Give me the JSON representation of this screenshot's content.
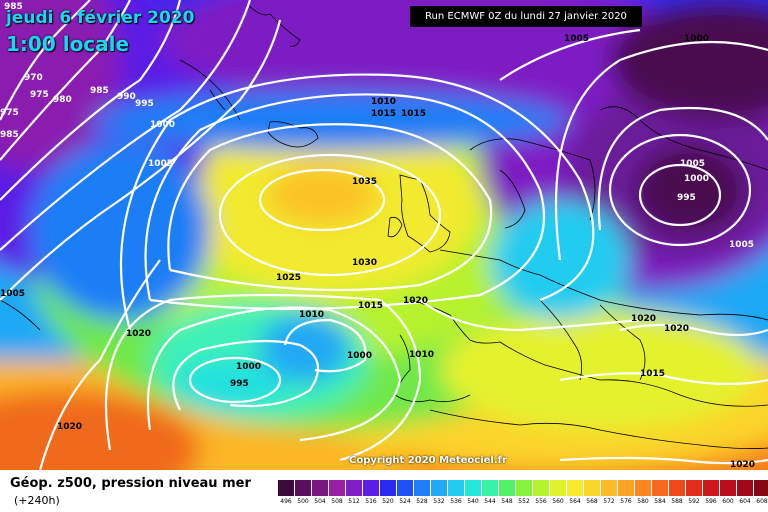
{
  "header": {
    "date": "jeudi 6 février 2020",
    "local_time": "1:00 locale",
    "run": "Run ECMWF 0Z du lundi 27 janvier 2020",
    "copyright": "Copyright 2020 Meteociel.fr"
  },
  "legend": {
    "field": "Géop. z500, pression niveau mer",
    "lead": "(+240h)",
    "scale": [
      {
        "value": "496",
        "color": "#3a0a3a"
      },
      {
        "value": "500",
        "color": "#5a0f5e"
      },
      {
        "value": "504",
        "color": "#7a1682"
      },
      {
        "value": "508",
        "color": "#9a1fa6"
      },
      {
        "value": "512",
        "color": "#7e1ec4"
      },
      {
        "value": "516",
        "color": "#5a1ee6"
      },
      {
        "value": "520",
        "color": "#2a2af0"
      },
      {
        "value": "524",
        "color": "#1f50f5"
      },
      {
        "value": "528",
        "color": "#1f7ef7"
      },
      {
        "value": "532",
        "color": "#22a8f5"
      },
      {
        "value": "536",
        "color": "#22ccf0"
      },
      {
        "value": "540",
        "color": "#24e6dc"
      },
      {
        "value": "544",
        "color": "#3af0a6"
      },
      {
        "value": "548",
        "color": "#52f266"
      },
      {
        "value": "552",
        "color": "#86f23c"
      },
      {
        "value": "556",
        "color": "#b6f22e"
      },
      {
        "value": "560",
        "color": "#def22e"
      },
      {
        "value": "564",
        "color": "#f7ea2e"
      },
      {
        "value": "568",
        "color": "#fbd42a"
      },
      {
        "value": "572",
        "color": "#fcbb26"
      },
      {
        "value": "576",
        "color": "#fca122"
      },
      {
        "value": "580",
        "color": "#fb8520"
      },
      {
        "value": "584",
        "color": "#f8681e"
      },
      {
        "value": "588",
        "color": "#f04a1c"
      },
      {
        "value": "592",
        "color": "#e32e1c"
      },
      {
        "value": "596",
        "color": "#d0181c"
      },
      {
        "value": "600",
        "color": "#b80e1a"
      },
      {
        "value": "604",
        "color": "#9e0a18"
      },
      {
        "value": "608",
        "color": "#840816"
      },
      {
        "value": "612",
        "color": "#5e0610"
      },
      {
        "value": "616",
        "color": "#2e0306"
      }
    ]
  },
  "isobars": {
    "l985": "985",
    "l970": "970",
    "l975": "975",
    "l980": "980",
    "l985b": "985",
    "l990": "990",
    "l995": "995",
    "l1000": "1000",
    "l1005a": "1005",
    "l1005w": "1005",
    "l1020w": "1020",
    "l1020sw": "1020",
    "l1010": "1010",
    "l1015": "1015",
    "l1015b": "1015",
    "l1035": "1035",
    "l1030": "1030",
    "l1025": "1025",
    "l1015c": "1015",
    "l1020c": "1020",
    "l1010c": "1010",
    "l1000c": "1000",
    "l1000d": "1000",
    "l995c": "995",
    "l1010e": "1010",
    "l1005top": "1005",
    "l1000top": "1000",
    "l1005e": "1005",
    "l1000e": "1000",
    "l995e": "995",
    "l1005e2": "1005",
    "l1020e": "1020",
    "l1020e2": "1020",
    "l1015s": "1015",
    "l1020s": "1020",
    "l975w": "975",
    "l985w": "985"
  }
}
